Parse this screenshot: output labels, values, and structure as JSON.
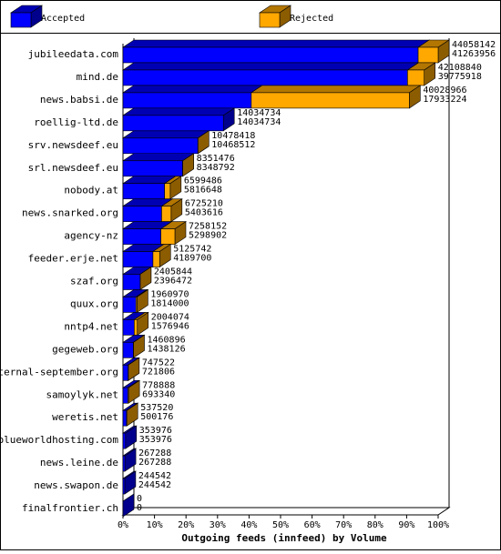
{
  "chart_data": {
    "type": "bar3d_stacked_h",
    "xlabel": "Outgoing feeds (innfeed) by Volume",
    "categories": [
      "jubileedata.com",
      "mind.de",
      "news.babsi.de",
      "roellig-ltd.de",
      "srv.newsdeef.eu",
      "srl.newsdeef.eu",
      "nobody.at",
      "news.snarked.org",
      "agency-nz",
      "feeder.erje.net",
      "szaf.org",
      "quux.org",
      "nntp4.net",
      "gegeweb.org",
      "eternal-september.org",
      "samoylyk.net",
      "weretis.net",
      "blueworldhosting.com",
      "news.leine.de",
      "news.swapon.de",
      "finalfrontier.ch"
    ],
    "series": [
      {
        "name": "Accepted",
        "color": "#0000ff",
        "values": [
          41263956,
          39775918,
          17933224,
          14034734,
          10468512,
          8348792,
          5816648,
          5403616,
          5298902,
          4189700,
          2396472,
          1814000,
          1576946,
          1438126,
          721806,
          693340,
          500176,
          353976,
          267288,
          244542,
          0
        ]
      },
      {
        "name": "Rejected",
        "color": "#ffa800",
        "values": [
          2794186,
          2332922,
          22095742,
          0,
          9906,
          2684,
          782838,
          1321594,
          1959250,
          936042,
          9372,
          146970,
          427128,
          22770,
          25716,
          85548,
          37344,
          0,
          0,
          0,
          0
        ]
      }
    ],
    "totals": [
      44058142,
      42108840,
      40028966,
      14034734,
      10478418,
      8351476,
      6599486,
      6725210,
      7258152,
      5125742,
      2405844,
      1960970,
      2004074,
      1460896,
      747522,
      778888,
      537520,
      353976,
      267288,
      244542,
      0
    ],
    "xlim": [
      0,
      44058142
    ],
    "xticks": [
      {
        "value": 0,
        "label": "0%"
      },
      {
        "value": 4405814.2,
        "label": "10%"
      },
      {
        "value": 8811628.4,
        "label": "20%"
      },
      {
        "value": 13217442.6,
        "label": "30%"
      },
      {
        "value": 17623256.8,
        "label": "40%"
      },
      {
        "value": 22029071,
        "label": "50%"
      },
      {
        "value": 26434885.2,
        "label": "60%"
      },
      {
        "value": 30840699.4,
        "label": "70%"
      },
      {
        "value": 35246513.6,
        "label": "80%"
      },
      {
        "value": 39652327.8,
        "label": "90%"
      },
      {
        "value": 44058142,
        "label": "100%"
      }
    ]
  }
}
